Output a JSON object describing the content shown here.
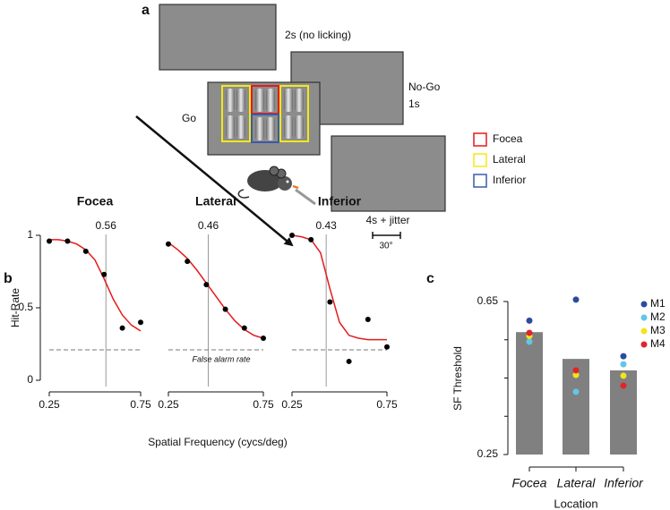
{
  "panels": [
    "a",
    "b",
    "c"
  ],
  "diagram": {
    "texts": {
      "no_lick": "2s (no licking)",
      "nogo": "No-Go",
      "nogo_time": "1s",
      "go": "Go",
      "iti": "4s + jitter",
      "scale": "30°"
    },
    "legend": [
      {
        "label": "Focea",
        "color": "#e41a1c"
      },
      {
        "label": "Lateral",
        "color": "#f2e81c"
      },
      {
        "label": "Inferior",
        "color": "#3b5aa8"
      }
    ]
  },
  "chart_data": [
    {
      "type": "line",
      "title": "Focea",
      "ylabel": "Hit-Rate",
      "x": [
        0.25,
        0.35,
        0.45,
        0.55,
        0.65,
        0.75
      ],
      "values": [
        0.96,
        0.96,
        0.89,
        0.73,
        0.36,
        0.4
      ],
      "fit_x": [
        0.25,
        0.3,
        0.35,
        0.4,
        0.45,
        0.5,
        0.55,
        0.6,
        0.65,
        0.7,
        0.75
      ],
      "fit_values": [
        0.97,
        0.97,
        0.96,
        0.94,
        0.9,
        0.83,
        0.7,
        0.56,
        0.45,
        0.38,
        0.34
      ],
      "fit_color": "#e41a1c",
      "point_color": "#000000",
      "threshold": 0.56,
      "false_alarm": 0.21,
      "xlim": [
        0.25,
        0.75
      ],
      "xticks": [
        0.25,
        0.75
      ],
      "ylim": [
        0,
        1
      ],
      "yticks": [
        0,
        0.5,
        1
      ]
    },
    {
      "type": "line",
      "title": "Lateral",
      "xlabel": "Spatial Frequency (cycs/deg)",
      "x": [
        0.25,
        0.35,
        0.45,
        0.55,
        0.65,
        0.75
      ],
      "values": [
        0.94,
        0.82,
        0.66,
        0.49,
        0.36,
        0.29
      ],
      "fit_x": [
        0.25,
        0.3,
        0.35,
        0.4,
        0.45,
        0.5,
        0.55,
        0.6,
        0.65,
        0.7,
        0.75
      ],
      "fit_values": [
        0.95,
        0.9,
        0.84,
        0.76,
        0.67,
        0.58,
        0.49,
        0.41,
        0.35,
        0.31,
        0.29
      ],
      "fit_color": "#e41a1c",
      "point_color": "#000000",
      "threshold": 0.46,
      "false_alarm": 0.21,
      "false_alarm_label": "False alarm rate",
      "xlim": [
        0.25,
        0.75
      ],
      "xticks": [
        0.25,
        0.75
      ],
      "ylim": [
        0,
        1
      ]
    },
    {
      "type": "line",
      "title": "Inferior",
      "x": [
        0.25,
        0.35,
        0.45,
        0.55,
        0.65,
        0.75
      ],
      "values": [
        1.0,
        0.97,
        0.54,
        0.13,
        0.42,
        0.23
      ],
      "fit_x": [
        0.25,
        0.3,
        0.35,
        0.4,
        0.45,
        0.5,
        0.55,
        0.6,
        0.65,
        0.7,
        0.75
      ],
      "fit_values": [
        1.0,
        0.99,
        0.97,
        0.88,
        0.63,
        0.4,
        0.31,
        0.29,
        0.28,
        0.28,
        0.28
      ],
      "fit_color": "#e41a1c",
      "point_color": "#000000",
      "threshold": 0.43,
      "false_alarm": 0.21,
      "xlim": [
        0.25,
        0.75
      ],
      "xticks": [
        0.25,
        0.75
      ],
      "ylim": [
        0,
        1
      ]
    },
    {
      "type": "bar",
      "ylabel": "SF Threshold",
      "xlabel": "Location",
      "categories": [
        "Focea",
        "Lateral",
        "Inferior"
      ],
      "values": [
        0.57,
        0.5,
        0.47
      ],
      "color": "#808080",
      "ylim": [
        0.25,
        0.65
      ],
      "yticks": [
        0.25,
        0.65
      ],
      "minor_yticks": [
        0.35,
        0.45,
        0.55
      ],
      "legend": "top-right",
      "series": [
        {
          "name": "M1",
          "color": "#2b4c9b",
          "values": [
            0.6,
            0.655,
            0.507
          ]
        },
        {
          "name": "M2",
          "color": "#63c6e6",
          "values": [
            0.545,
            0.414,
            0.486
          ]
        },
        {
          "name": "M3",
          "color": "#f4e51a",
          "values": [
            0.56,
            0.458,
            0.456
          ]
        },
        {
          "name": "M4",
          "color": "#e2242a",
          "values": [
            0.568,
            0.47,
            0.43
          ]
        }
      ]
    }
  ]
}
